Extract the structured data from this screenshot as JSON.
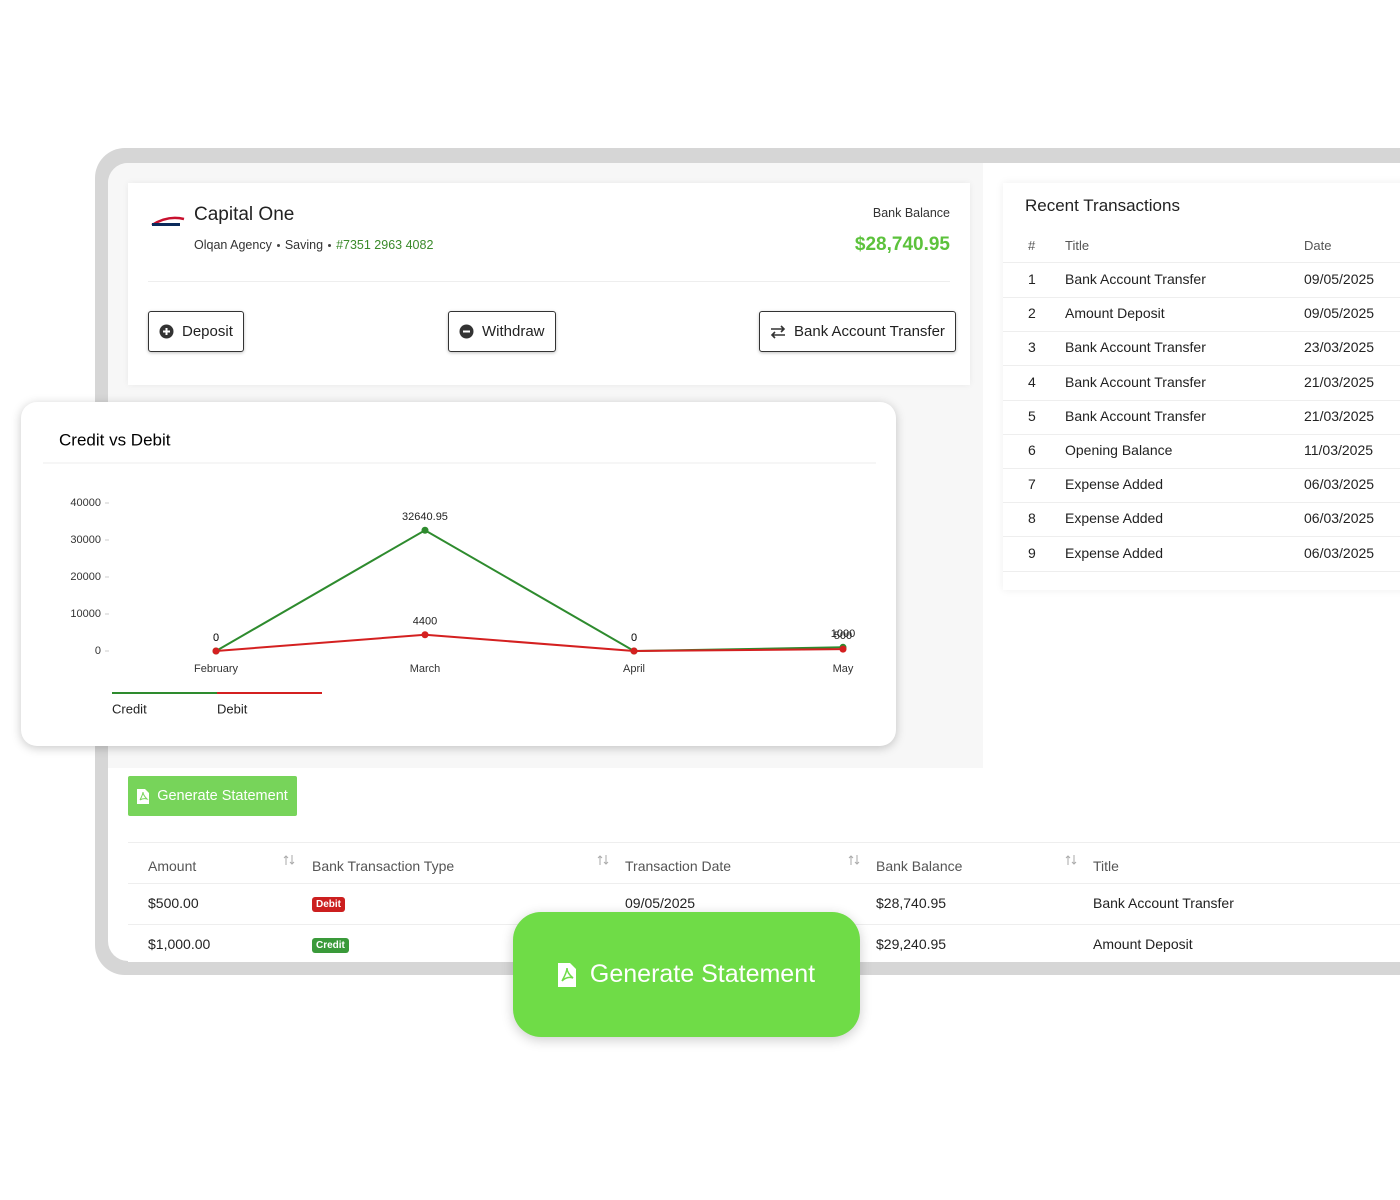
{
  "account": {
    "name": "Capital One",
    "agency": "Olqan Agency",
    "account_type": "Saving",
    "account_number": "#7351 2963 4082",
    "balance_label": "Bank Balance",
    "balance": "$28,740.95"
  },
  "actions": {
    "deposit": "Deposit",
    "withdraw": "Withdraw",
    "transfer": "Bank Account Transfer"
  },
  "chart_data": {
    "type": "line",
    "title": "Credit vs Debit",
    "categories": [
      "February",
      "March",
      "April",
      "May"
    ],
    "series": [
      {
        "name": "Credit",
        "color": "#2e8b2e",
        "values": [
          0,
          32640.95,
          0,
          1000
        ]
      },
      {
        "name": "Debit",
        "color": "#d42020",
        "values": [
          0,
          4400,
          0,
          500
        ]
      }
    ],
    "ylim": [
      0,
      40000
    ],
    "yticks": [
      0,
      10000,
      20000,
      30000,
      40000
    ]
  },
  "recent_transactions": {
    "title": "Recent Transactions",
    "columns": [
      "#",
      "Title",
      "Date"
    ],
    "rows": [
      [
        1,
        "Bank Account Transfer",
        "09/05/2025"
      ],
      [
        2,
        "Amount Deposit",
        "09/05/2025"
      ],
      [
        3,
        "Bank Account Transfer",
        "23/03/2025"
      ],
      [
        4,
        "Bank Account Transfer",
        "21/03/2025"
      ],
      [
        5,
        "Bank Account Transfer",
        "21/03/2025"
      ],
      [
        6,
        "Opening Balance",
        "11/03/2025"
      ],
      [
        7,
        "Expense Added",
        "06/03/2025"
      ],
      [
        8,
        "Expense Added",
        "06/03/2025"
      ],
      [
        9,
        "Expense Added",
        "06/03/2025"
      ]
    ]
  },
  "statement": {
    "button": "Generate Statement",
    "columns": [
      "Amount",
      "Bank Transaction Type",
      "Transaction Date",
      "Bank Balance",
      "Title"
    ],
    "rows": [
      [
        "$500.00",
        "Debit",
        "09/05/2025",
        "$28,740.95",
        "Bank Account Transfer"
      ],
      [
        "$1,000.00",
        "Credit",
        null,
        "$29,240.95",
        "Amount Deposit"
      ]
    ]
  },
  "cta": {
    "label": "Generate Statement"
  }
}
